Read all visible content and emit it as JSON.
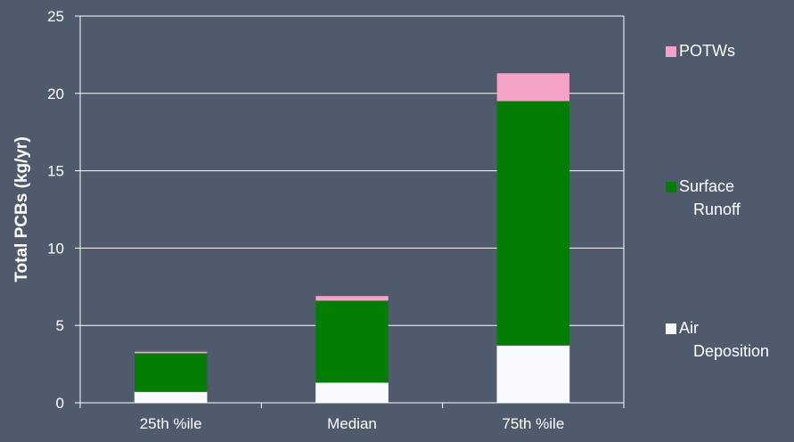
{
  "chart_data": {
    "type": "bar",
    "stacked": true,
    "title": "",
    "xlabel": "",
    "ylabel": "Total PCBs (kg/yr)",
    "categories": [
      "25th %ile",
      "Median",
      "75th %ile"
    ],
    "series": [
      {
        "name": "Air Deposition",
        "legend_lines": [
          "Air",
          "Deposition"
        ],
        "color": "#f8fafd",
        "values": [
          0.7,
          1.3,
          3.7
        ]
      },
      {
        "name": "Surface Runoff",
        "legend_lines": [
          "Surface",
          "Runoff"
        ],
        "color": "#037d03",
        "values": [
          2.5,
          5.3,
          15.8
        ]
      },
      {
        "name": "POTWs",
        "legend_lines": [
          "POTWs"
        ],
        "color": "#f6a2c8",
        "values": [
          0.1,
          0.3,
          1.8
        ]
      }
    ],
    "ylim": [
      0,
      25
    ],
    "yticks": [
      "0",
      "5",
      "10",
      "15",
      "20",
      "25"
    ],
    "grid": true,
    "legend": "right",
    "colors": {
      "background": "#4f5b6d",
      "axis": "#ffffff",
      "grid": "#ffffff"
    }
  }
}
